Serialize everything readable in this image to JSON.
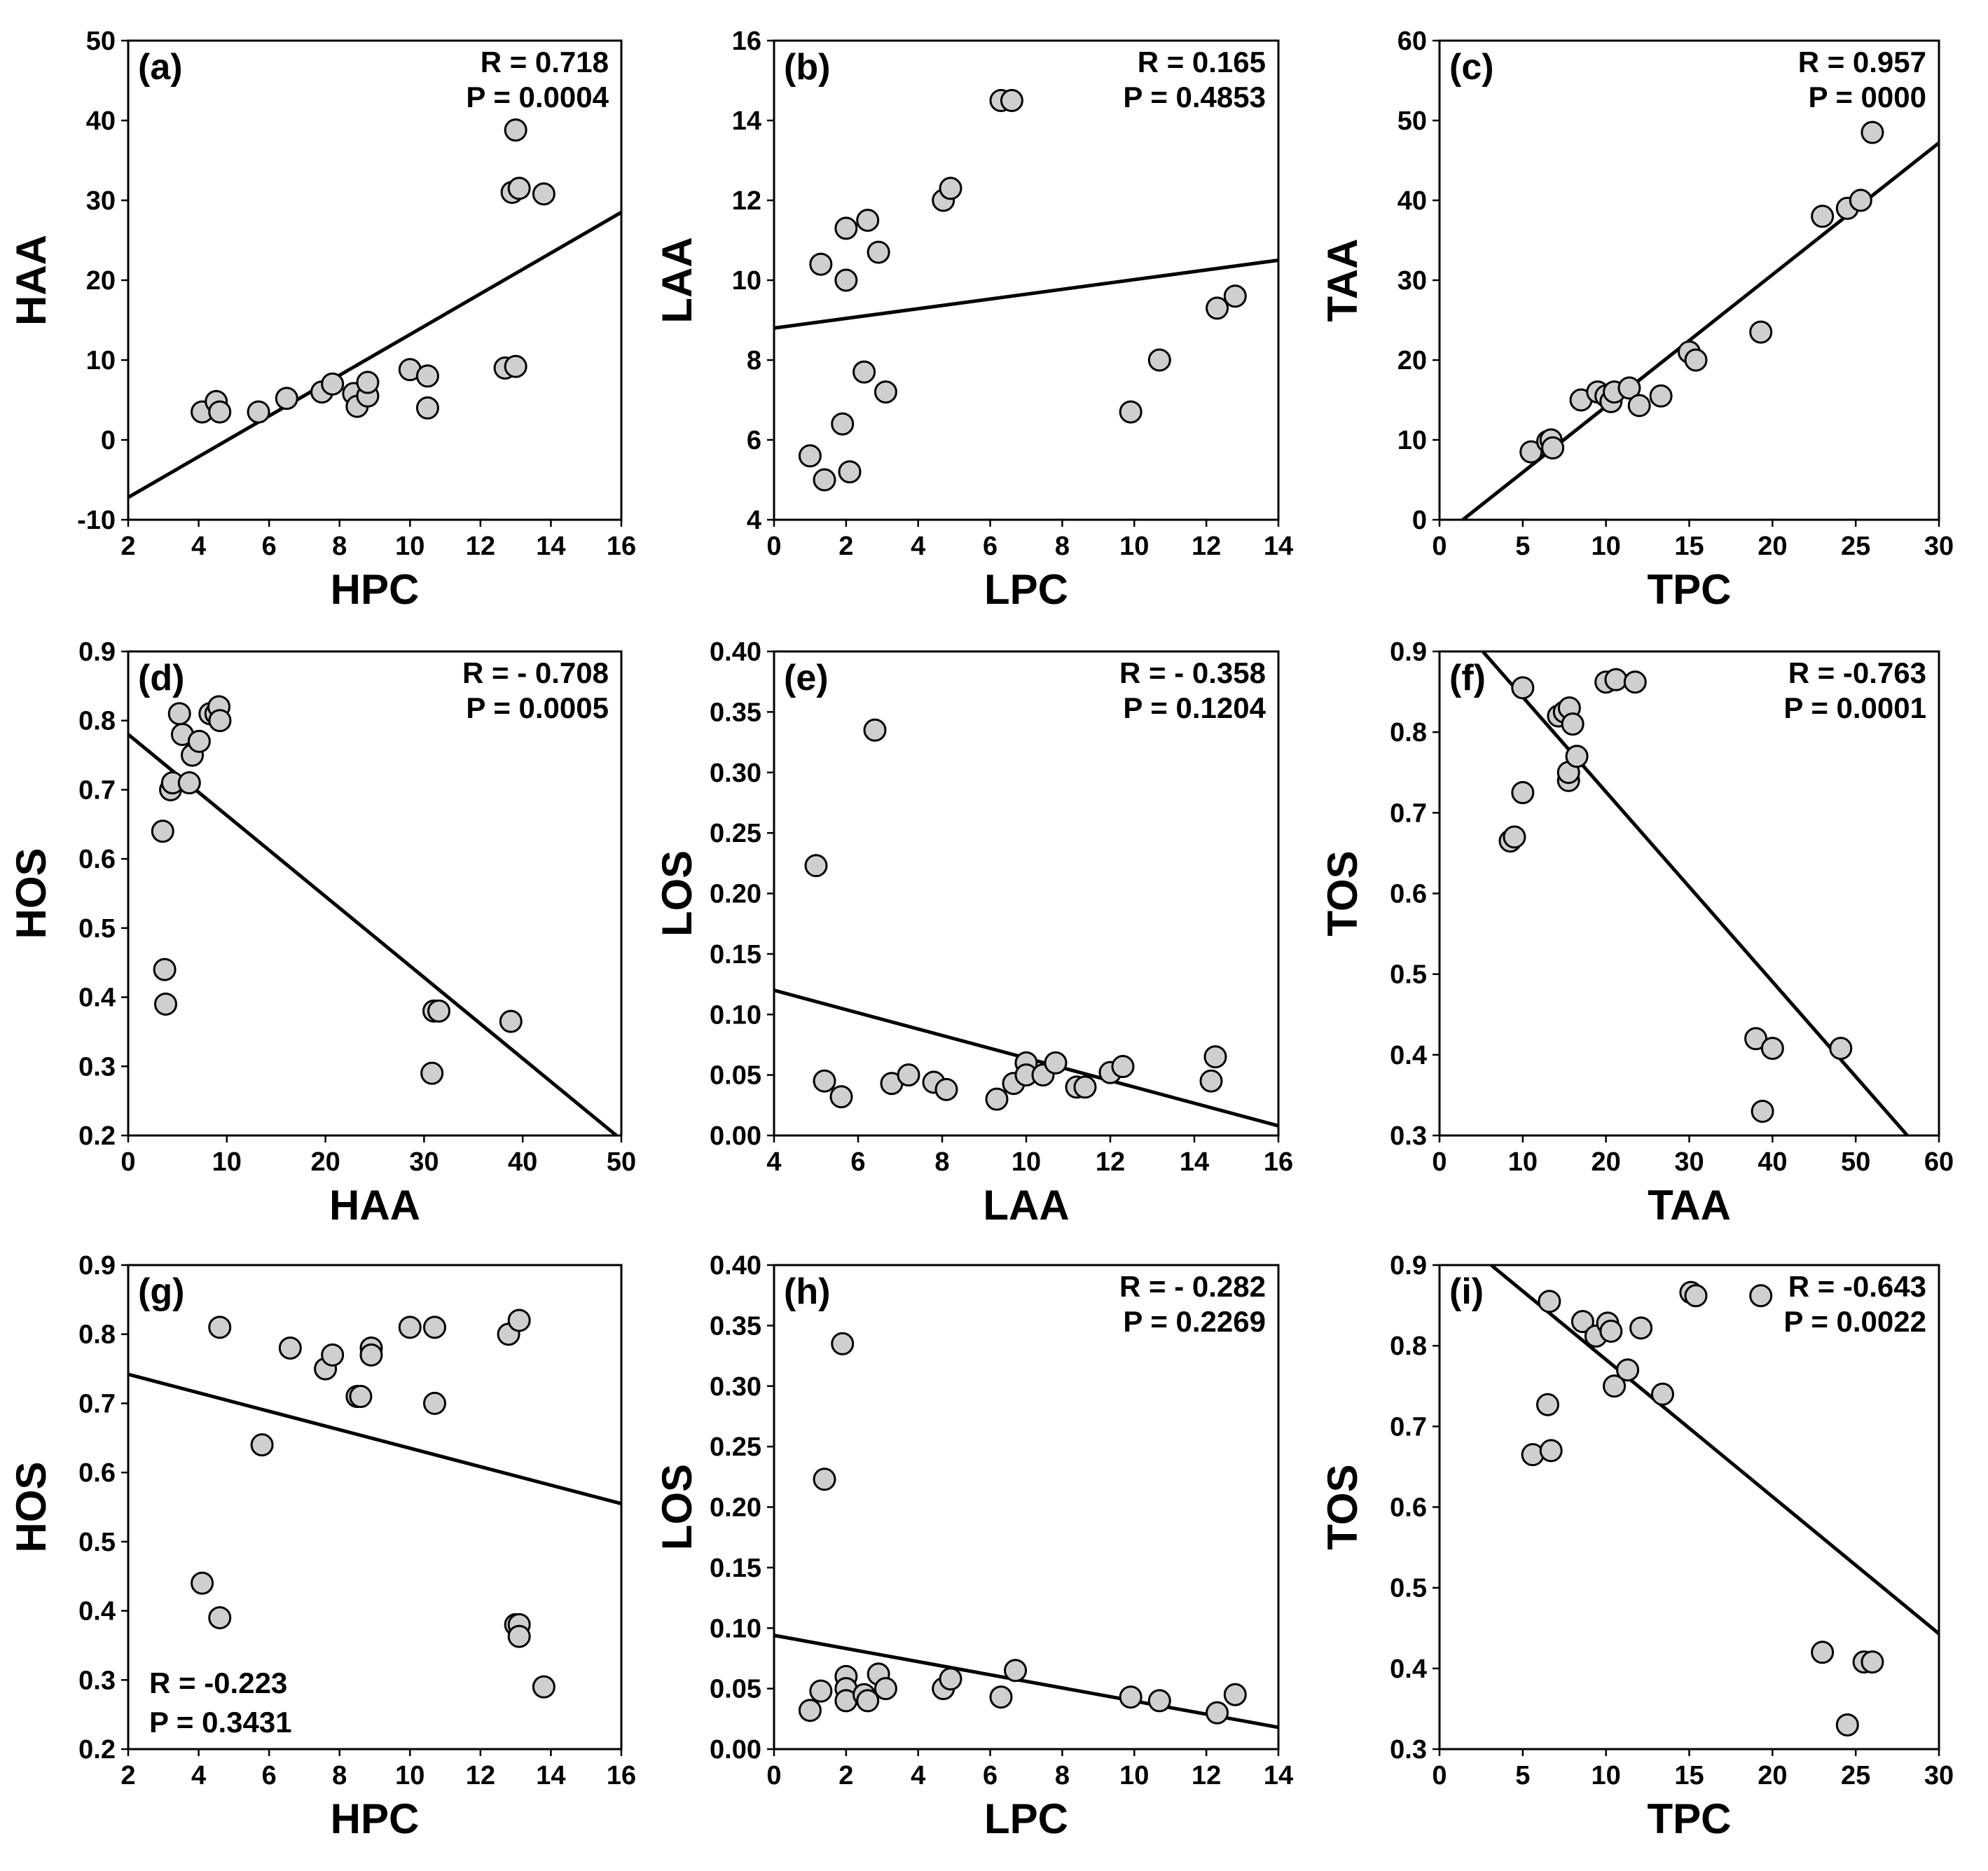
{
  "chart_data": [
    {
      "panel": "(a)",
      "type": "scatter",
      "xlabel": "HPC",
      "ylabel": "HAA",
      "xlim": [
        2,
        16
      ],
      "ylim": [
        -10,
        50
      ],
      "xticks": [
        2,
        4,
        6,
        8,
        10,
        12,
        14,
        16
      ],
      "yticks": [
        -10,
        0,
        10,
        20,
        30,
        40,
        50
      ],
      "stats": [
        "R = 0.718",
        "P = 0.0004"
      ],
      "stats_pos": "top-right",
      "points": [
        [
          4.1,
          3.5
        ],
        [
          4.5,
          4.8
        ],
        [
          4.6,
          3.5
        ],
        [
          5.7,
          3.5
        ],
        [
          6.5,
          5.2
        ],
        [
          7.5,
          6
        ],
        [
          7.8,
          7
        ],
        [
          8.4,
          5.8
        ],
        [
          8.5,
          4.2
        ],
        [
          8.8,
          5.5
        ],
        [
          8.8,
          7.2
        ],
        [
          10,
          8.8
        ],
        [
          10.5,
          8
        ],
        [
          10.5,
          4
        ],
        [
          12.7,
          9
        ],
        [
          13,
          9.2
        ],
        [
          12.9,
          31
        ],
        [
          13,
          38.8
        ],
        [
          13.1,
          31.5
        ],
        [
          13.8,
          30.8
        ]
      ],
      "fit": [
        [
          2,
          -7.2
        ],
        [
          16,
          28.5
        ]
      ]
    },
    {
      "panel": "(b)",
      "type": "scatter",
      "xlabel": "LPC",
      "ylabel": "LAA",
      "xlim": [
        0,
        14
      ],
      "ylim": [
        4,
        16
      ],
      "xticks": [
        0,
        2,
        4,
        6,
        8,
        10,
        12,
        14
      ],
      "yticks": [
        4,
        6,
        8,
        10,
        12,
        14,
        16
      ],
      "stats": [
        "R = 0.165",
        "P = 0.4853"
      ],
      "stats_pos": "top-right",
      "points": [
        [
          1,
          5.6
        ],
        [
          1.3,
          10.4
        ],
        [
          1.4,
          5
        ],
        [
          1.9,
          6.4
        ],
        [
          2,
          11.3
        ],
        [
          2,
          10
        ],
        [
          2.1,
          5.2
        ],
        [
          2.5,
          7.7
        ],
        [
          2.6,
          11.5
        ],
        [
          2.9,
          10.7
        ],
        [
          3.1,
          7.2
        ],
        [
          4.7,
          12
        ],
        [
          4.9,
          12.3
        ],
        [
          6.3,
          14.5
        ],
        [
          6.6,
          14.5
        ],
        [
          9.9,
          6.7
        ],
        [
          10.7,
          8
        ],
        [
          12.3,
          9.3
        ],
        [
          12.8,
          9.6
        ]
      ],
      "fit": [
        [
          0,
          8.8
        ],
        [
          14,
          10.5
        ]
      ]
    },
    {
      "panel": "(c)",
      "type": "scatter",
      "xlabel": "TPC",
      "ylabel": "TAA",
      "xlim": [
        0,
        30
      ],
      "ylim": [
        0,
        60
      ],
      "xticks": [
        0,
        5,
        10,
        15,
        20,
        25,
        30
      ],
      "yticks": [
        0,
        10,
        20,
        30,
        40,
        50,
        60
      ],
      "stats": [
        "R = 0.957",
        "P = 0000"
      ],
      "stats_pos": "top-right",
      "points": [
        [
          5.5,
          8.5
        ],
        [
          6.5,
          9.8
        ],
        [
          6.7,
          10
        ],
        [
          6.8,
          9
        ],
        [
          8.5,
          15
        ],
        [
          9.5,
          16
        ],
        [
          10,
          15.5
        ],
        [
          10.3,
          14.8
        ],
        [
          10.5,
          16
        ],
        [
          11.4,
          16.5
        ],
        [
          12,
          14.3
        ],
        [
          13.3,
          15.5
        ],
        [
          15,
          21
        ],
        [
          15.4,
          20
        ],
        [
          19.3,
          23.5
        ],
        [
          23,
          38
        ],
        [
          24.5,
          39
        ],
        [
          25.3,
          40
        ],
        [
          26,
          48.5
        ]
      ],
      "fit": [
        [
          1.4,
          0
        ],
        [
          30,
          47.2
        ]
      ]
    },
    {
      "panel": "(d)",
      "type": "scatter",
      "xlabel": "HAA",
      "ylabel": "HOS",
      "xlim": [
        0,
        50
      ],
      "ylim": [
        0.2,
        0.9
      ],
      "xticks": [
        0,
        10,
        20,
        30,
        40,
        50
      ],
      "yticks": [
        0.2,
        0.3,
        0.4,
        0.5,
        0.6,
        0.7,
        0.8,
        0.9
      ],
      "stats": [
        "R = - 0.708",
        "P = 0.0005"
      ],
      "stats_pos": "top-right",
      "points": [
        [
          3.5,
          0.64
        ],
        [
          3.7,
          0.44
        ],
        [
          3.8,
          0.39
        ],
        [
          4.3,
          0.7
        ],
        [
          4.5,
          0.71
        ],
        [
          5.2,
          0.81
        ],
        [
          5.5,
          0.78
        ],
        [
          6.2,
          0.71
        ],
        [
          6.5,
          0.75
        ],
        [
          7.2,
          0.77
        ],
        [
          8.3,
          0.81
        ],
        [
          8.9,
          0.81
        ],
        [
          9.2,
          0.82
        ],
        [
          9.3,
          0.8
        ],
        [
          30.8,
          0.29
        ],
        [
          31,
          0.38
        ],
        [
          31.5,
          0.38
        ],
        [
          38.8,
          0.365
        ]
      ],
      "fit": [
        [
          0,
          0.78
        ],
        [
          49.5,
          0.2
        ]
      ]
    },
    {
      "panel": "(e)",
      "type": "scatter",
      "xlabel": "LAA",
      "ylabel": "LOS",
      "xlim": [
        4,
        16
      ],
      "ylim": [
        0.0,
        0.4
      ],
      "xticks": [
        4,
        6,
        8,
        10,
        12,
        14,
        16
      ],
      "xtick_labels": [
        "4",
        "6",
        "8",
        "10",
        "12",
        "14",
        "16"
      ],
      "yticks": [
        0.0,
        0.05,
        0.1,
        0.15,
        0.2,
        0.25,
        0.3,
        0.35,
        0.4
      ],
      "ytick_labels": [
        "0.00",
        "0.05",
        "0.10",
        "0.15",
        "0.20",
        "0.25",
        "0.30",
        "0.35",
        "0.40"
      ],
      "stats": [
        "R = - 0.358",
        "P = 0.1204"
      ],
      "stats_pos": "top-right",
      "points": [
        [
          5,
          0.223
        ],
        [
          5.2,
          0.045
        ],
        [
          5.6,
          0.032
        ],
        [
          6.4,
          0.335
        ],
        [
          6.8,
          0.043
        ],
        [
          7.2,
          0.05
        ],
        [
          7.8,
          0.044
        ],
        [
          8.1,
          0.038
        ],
        [
          9.3,
          0.03
        ],
        [
          9.7,
          0.043
        ],
        [
          10,
          0.06
        ],
        [
          10,
          0.05
        ],
        [
          10.4,
          0.05
        ],
        [
          10.7,
          0.06
        ],
        [
          11.2,
          0.04
        ],
        [
          11.4,
          0.04
        ],
        [
          12,
          0.052
        ],
        [
          12.3,
          0.057
        ],
        [
          14.4,
          0.045
        ],
        [
          14.5,
          0.065
        ]
      ],
      "fit": [
        [
          4,
          0.12
        ],
        [
          16,
          0.008
        ]
      ]
    },
    {
      "panel": "(f)",
      "type": "scatter",
      "xlabel": "TAA",
      "ylabel": "TOS",
      "xlim": [
        0,
        60
      ],
      "ylim": [
        0.3,
        0.9
      ],
      "xticks": [
        0,
        10,
        20,
        30,
        40,
        50,
        60
      ],
      "yticks": [
        0.3,
        0.4,
        0.5,
        0.6,
        0.7,
        0.8,
        0.9
      ],
      "stats": [
        "R = -0.763",
        "P = 0.0001"
      ],
      "stats_pos": "top-right",
      "points": [
        [
          8.5,
          0.665
        ],
        [
          9,
          0.67
        ],
        [
          10,
          0.855
        ],
        [
          10,
          0.725
        ],
        [
          14.3,
          0.82
        ],
        [
          15,
          0.825
        ],
        [
          15.5,
          0.74
        ],
        [
          15.5,
          0.75
        ],
        [
          15.6,
          0.83
        ],
        [
          16,
          0.81
        ],
        [
          16.5,
          0.77
        ],
        [
          20,
          0.862
        ],
        [
          21.2,
          0.865
        ],
        [
          23.5,
          0.862
        ],
        [
          38,
          0.42
        ],
        [
          38.8,
          0.33
        ],
        [
          40,
          0.408
        ],
        [
          48.2,
          0.408
        ]
      ],
      "fit": [
        [
          5.2,
          0.9
        ],
        [
          56.2,
          0.3
        ]
      ]
    },
    {
      "panel": "(g)",
      "type": "scatter",
      "xlabel": "HPC",
      "ylabel": "HOS",
      "xlim": [
        2,
        16
      ],
      "ylim": [
        0.2,
        0.9
      ],
      "xticks": [
        2,
        4,
        6,
        8,
        10,
        12,
        14,
        16
      ],
      "yticks": [
        0.2,
        0.3,
        0.4,
        0.5,
        0.6,
        0.7,
        0.8,
        0.9
      ],
      "stats": [
        "R = -0.223",
        "P = 0.3431"
      ],
      "stats_pos": "bottom-left",
      "points": [
        [
          4.1,
          0.44
        ],
        [
          4.6,
          0.81
        ],
        [
          4.6,
          0.39
        ],
        [
          5.8,
          0.64
        ],
        [
          6.6,
          0.78
        ],
        [
          7.6,
          0.75
        ],
        [
          7.8,
          0.77
        ],
        [
          8.5,
          0.71
        ],
        [
          8.6,
          0.71
        ],
        [
          8.9,
          0.78
        ],
        [
          8.9,
          0.77
        ],
        [
          10,
          0.81
        ],
        [
          10.7,
          0.81
        ],
        [
          10.7,
          0.7
        ],
        [
          12.8,
          0.8
        ],
        [
          13.1,
          0.82
        ],
        [
          13,
          0.38
        ],
        [
          13.1,
          0.38
        ],
        [
          13.1,
          0.363
        ],
        [
          13.8,
          0.29
        ]
      ],
      "fit": [
        [
          2,
          0.742
        ],
        [
          16,
          0.555
        ]
      ]
    },
    {
      "panel": "(h)",
      "type": "scatter",
      "xlabel": "LPC",
      "ylabel": "LOS",
      "xlim": [
        0,
        14
      ],
      "ylim": [
        0.0,
        0.4
      ],
      "xticks": [
        0,
        2,
        4,
        6,
        8,
        10,
        12,
        14
      ],
      "yticks": [
        0.0,
        0.05,
        0.1,
        0.15,
        0.2,
        0.25,
        0.3,
        0.35,
        0.4
      ],
      "ytick_labels": [
        "0.00",
        "0.05",
        "0.10",
        "0.15",
        "0.20",
        "0.25",
        "0.30",
        "0.35",
        "0.40"
      ],
      "stats": [
        "R = - 0.282",
        "P = 0.2269"
      ],
      "stats_pos": "top-right",
      "points": [
        [
          1,
          0.032
        ],
        [
          1.3,
          0.048
        ],
        [
          1.4,
          0.223
        ],
        [
          1.9,
          0.335
        ],
        [
          2,
          0.06
        ],
        [
          2,
          0.05
        ],
        [
          2,
          0.04
        ],
        [
          2.5,
          0.045
        ],
        [
          2.6,
          0.04
        ],
        [
          2.9,
          0.062
        ],
        [
          3.1,
          0.05
        ],
        [
          4.7,
          0.05
        ],
        [
          4.9,
          0.058
        ],
        [
          6.3,
          0.043
        ],
        [
          6.7,
          0.065
        ],
        [
          9.9,
          0.043
        ],
        [
          10.7,
          0.04
        ],
        [
          12.3,
          0.03
        ],
        [
          12.8,
          0.045
        ]
      ],
      "fit": [
        [
          0,
          0.094
        ],
        [
          14,
          0.018
        ]
      ]
    },
    {
      "panel": "(i)",
      "type": "scatter",
      "xlabel": "TPC",
      "ylabel": "TOS",
      "xlim": [
        0,
        30
      ],
      "ylim": [
        0.3,
        0.9
      ],
      "xticks": [
        0,
        5,
        10,
        15,
        20,
        25,
        30
      ],
      "yticks": [
        0.3,
        0.4,
        0.5,
        0.6,
        0.7,
        0.8,
        0.9
      ],
      "stats": [
        "R = -0.643",
        "P = 0.0022"
      ],
      "stats_pos": "top-right",
      "points": [
        [
          5.6,
          0.665
        ],
        [
          6.5,
          0.727
        ],
        [
          6.6,
          0.855
        ],
        [
          6.7,
          0.67
        ],
        [
          8.6,
          0.83
        ],
        [
          9.4,
          0.812
        ],
        [
          10.1,
          0.828
        ],
        [
          10.3,
          0.818
        ],
        [
          10.5,
          0.75
        ],
        [
          11.3,
          0.77
        ],
        [
          12.1,
          0.822
        ],
        [
          13.4,
          0.74
        ],
        [
          15.1,
          0.866
        ],
        [
          15.4,
          0.862
        ],
        [
          19.3,
          0.862
        ],
        [
          23,
          0.42
        ],
        [
          24.5,
          0.33
        ],
        [
          25.5,
          0.408
        ],
        [
          26,
          0.408
        ]
      ],
      "fit": [
        [
          3.1,
          0.9
        ],
        [
          30,
          0.443
        ]
      ]
    }
  ]
}
